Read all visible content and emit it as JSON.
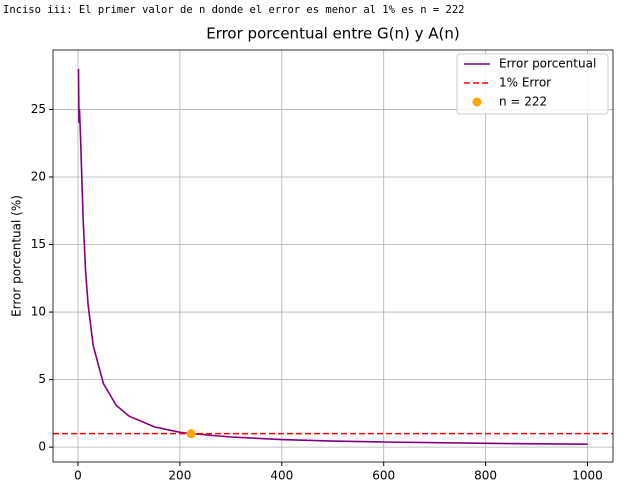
{
  "console_output": "Inciso iii: El primer valor de n donde el error es menor al 1% es n = 222",
  "chart_data": {
    "type": "line",
    "title": "Error porcentual entre G(n) y A(n)",
    "y_label": "Error porcentual (%)",
    "x": [
      1,
      2,
      3,
      5,
      10,
      15,
      20,
      30,
      50,
      75,
      100,
      150,
      200,
      222,
      300,
      400,
      500,
      600,
      800,
      1000
    ],
    "series": [
      {
        "name": "Error porcentual",
        "color": "#800080",
        "values": [
          28,
          24,
          25,
          23,
          17,
          13,
          10.5,
          7.5,
          4.7,
          3.1,
          2.3,
          1.5,
          1.1,
          1.0,
          0.75,
          0.56,
          0.45,
          0.38,
          0.28,
          0.22
        ]
      }
    ],
    "reference_line": {
      "name": "1% Error",
      "value": 1,
      "color": "#ff0000"
    },
    "marker": {
      "name": "n = 222",
      "x": 222,
      "y": 1,
      "color": "#ffa500"
    },
    "xlim": [
      -49,
      1050
    ],
    "ylim": [
      -1.1,
      29.4
    ],
    "xticks": [
      0,
      200,
      400,
      600,
      800,
      1000
    ],
    "yticks": [
      0,
      5,
      10,
      15,
      20,
      25
    ],
    "grid": true,
    "legend": "upper right"
  }
}
